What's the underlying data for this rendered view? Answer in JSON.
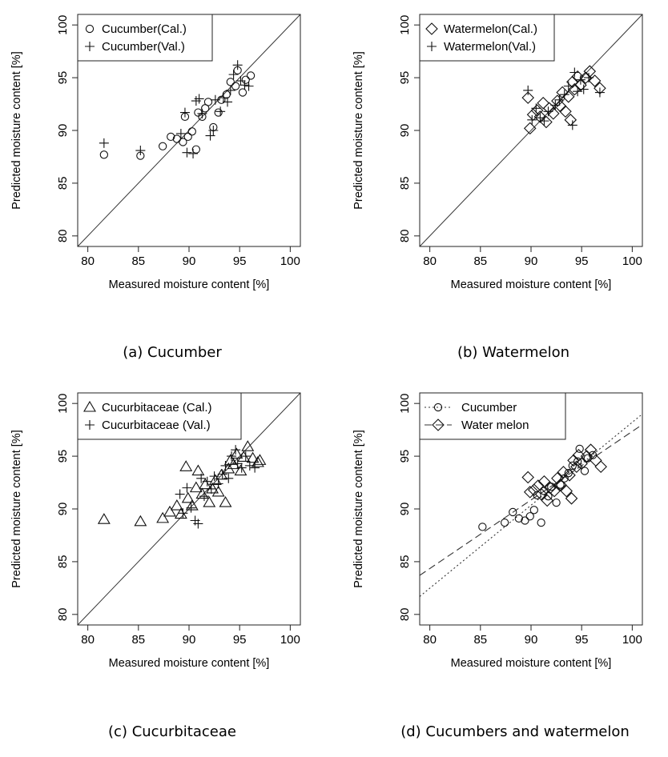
{
  "figure": {
    "panels": [
      {
        "caption": "(a) Cucumber"
      },
      {
        "caption": "(b) Watermelon"
      },
      {
        "caption": "(c) Cucurbitaceae"
      },
      {
        "caption": "(d) Cucumbers and watermelon"
      }
    ]
  },
  "chart_data": [
    {
      "type": "scatter",
      "title": "",
      "xlabel": "Measured moisture content [%]",
      "ylabel": "Predicted moisture content [%]",
      "xlim": [
        79,
        101
      ],
      "ylim": [
        79,
        101
      ],
      "xticks": [
        80,
        85,
        90,
        95,
        100
      ],
      "yticks": [
        80,
        85,
        90,
        95,
        100
      ],
      "identity_line": true,
      "legend_position": "top-left",
      "series": [
        {
          "name": "Cucumber(Cal.)",
          "marker": "circle",
          "points": [
            [
              81.6,
              87.7
            ],
            [
              85.2,
              87.6
            ],
            [
              87.4,
              88.5
            ],
            [
              88.2,
              89.4
            ],
            [
              88.8,
              89.2
            ],
            [
              89.4,
              88.9
            ],
            [
              89.9,
              89.4
            ],
            [
              89.6,
              91.3
            ],
            [
              90.3,
              89.9
            ],
            [
              90.7,
              88.2
            ],
            [
              90.9,
              91.7
            ],
            [
              91.3,
              91.3
            ],
            [
              91.6,
              92.1
            ],
            [
              91.9,
              92.7
            ],
            [
              92.4,
              90.3
            ],
            [
              92.9,
              91.7
            ],
            [
              93.2,
              92.9
            ],
            [
              93.7,
              93.4
            ],
            [
              94.1,
              94.6
            ],
            [
              94.6,
              94.2
            ],
            [
              94.8,
              95.7
            ],
            [
              95.3,
              93.6
            ],
            [
              95.6,
              94.8
            ],
            [
              96.1,
              95.2
            ]
          ]
        },
        {
          "name": "Cucumber(Val.)",
          "marker": "plus",
          "points": [
            [
              81.6,
              88.8
            ],
            [
              85.2,
              88.1
            ],
            [
              89.2,
              89.7
            ],
            [
              89.6,
              91.7
            ],
            [
              89.8,
              87.9
            ],
            [
              90.4,
              87.8
            ],
            [
              90.7,
              92.8
            ],
            [
              91.0,
              93.0
            ],
            [
              91.3,
              91.6
            ],
            [
              92.1,
              89.5
            ],
            [
              92.4,
              90.0
            ],
            [
              92.6,
              92.9
            ],
            [
              93.1,
              91.8
            ],
            [
              93.4,
              93.1
            ],
            [
              93.8,
              92.7
            ],
            [
              94.1,
              93.8
            ],
            [
              94.4,
              95.3
            ],
            [
              94.8,
              96.2
            ],
            [
              95.1,
              94.7
            ],
            [
              95.5,
              94.3
            ],
            [
              95.9,
              94.2
            ]
          ]
        }
      ]
    },
    {
      "type": "scatter",
      "title": "",
      "xlabel": "Measured moisture content [%]",
      "ylabel": "Predicted moisture content [%]",
      "xlim": [
        79,
        101
      ],
      "ylim": [
        79,
        101
      ],
      "xticks": [
        80,
        85,
        90,
        95,
        100
      ],
      "yticks": [
        80,
        85,
        90,
        95,
        100
      ],
      "identity_line": true,
      "legend_position": "top-left",
      "series": [
        {
          "name": "Watermelon(Cal.)",
          "marker": "diamond",
          "points": [
            [
              89.7,
              93.1
            ],
            [
              89.9,
              90.2
            ],
            [
              90.2,
              91.5
            ],
            [
              90.6,
              91.9
            ],
            [
              90.9,
              91.3
            ],
            [
              91.2,
              92.6
            ],
            [
              91.5,
              90.8
            ],
            [
              91.8,
              92.1
            ],
            [
              92.2,
              91.6
            ],
            [
              92.6,
              92.8
            ],
            [
              92.9,
              92.3
            ],
            [
              93.1,
              93.6
            ],
            [
              93.4,
              91.8
            ],
            [
              93.7,
              93.2
            ],
            [
              93.9,
              91.0
            ],
            [
              94.1,
              94.6
            ],
            [
              94.3,
              93.9
            ],
            [
              94.6,
              95.1
            ],
            [
              94.9,
              94.3
            ],
            [
              95.4,
              95.0
            ],
            [
              95.8,
              95.6
            ],
            [
              96.3,
              94.7
            ],
            [
              96.8,
              94.0
            ]
          ]
        },
        {
          "name": "Watermelon(Val.)",
          "marker": "plus",
          "points": [
            [
              89.7,
              93.8
            ],
            [
              90.1,
              91.0
            ],
            [
              90.5,
              92.1
            ],
            [
              90.9,
              91.2
            ],
            [
              91.3,
              90.9
            ],
            [
              91.7,
              91.8
            ],
            [
              92.4,
              92.4
            ],
            [
              92.8,
              92.9
            ],
            [
              93.3,
              93.4
            ],
            [
              93.7,
              94.2
            ],
            [
              94.1,
              90.5
            ],
            [
              94.3,
              95.5
            ],
            [
              94.6,
              93.7
            ],
            [
              94.9,
              94.8
            ],
            [
              95.2,
              93.9
            ],
            [
              95.7,
              95.0
            ],
            [
              96.8,
              93.6
            ]
          ]
        }
      ]
    },
    {
      "type": "scatter",
      "title": "",
      "xlabel": "Measured moisture content [%]",
      "ylabel": "Predicted moisture content [%]",
      "xlim": [
        79,
        101
      ],
      "ylim": [
        79,
        101
      ],
      "xticks": [
        80,
        85,
        90,
        95,
        100
      ],
      "yticks": [
        80,
        85,
        90,
        95,
        100
      ],
      "identity_line": true,
      "legend_position": "top-left",
      "series": [
        {
          "name": "Cucurbitaceae (Cal.)",
          "marker": "triangle",
          "points": [
            [
              81.6,
              89.0
            ],
            [
              85.2,
              88.8
            ],
            [
              87.4,
              89.1
            ],
            [
              88.1,
              89.7
            ],
            [
              88.8,
              90.3
            ],
            [
              89.2,
              89.5
            ],
            [
              89.7,
              94.0
            ],
            [
              89.9,
              91.0
            ],
            [
              90.3,
              90.3
            ],
            [
              90.7,
              92.0
            ],
            [
              90.9,
              93.6
            ],
            [
              91.3,
              91.4
            ],
            [
              91.6,
              92.3
            ],
            [
              92.0,
              90.6
            ],
            [
              92.3,
              91.9
            ],
            [
              92.6,
              92.7
            ],
            [
              92.9,
              91.6
            ],
            [
              93.2,
              93.2
            ],
            [
              93.6,
              90.6
            ],
            [
              93.9,
              93.8
            ],
            [
              94.1,
              94.6
            ],
            [
              94.4,
              94.2
            ],
            [
              94.7,
              95.2
            ],
            [
              95.1,
              93.6
            ],
            [
              95.4,
              94.9
            ],
            [
              95.8,
              95.9
            ],
            [
              96.3,
              94.8
            ],
            [
              96.8,
              94.4
            ],
            [
              97.0,
              94.6
            ]
          ]
        },
        {
          "name": "Cucurbitaceae (Val.)",
          "marker": "plus",
          "points": [
            [
              89.1,
              91.4
            ],
            [
              89.4,
              89.6
            ],
            [
              89.8,
              92.0
            ],
            [
              90.2,
              90.1
            ],
            [
              90.6,
              88.9
            ],
            [
              90.9,
              88.6
            ],
            [
              91.2,
              92.9
            ],
            [
              91.5,
              91.2
            ],
            [
              91.8,
              92.6
            ],
            [
              92.2,
              91.9
            ],
            [
              92.5,
              93.1
            ],
            [
              92.9,
              92.4
            ],
            [
              93.3,
              93.3
            ],
            [
              93.6,
              94.1
            ],
            [
              93.9,
              92.9
            ],
            [
              94.2,
              95.0
            ],
            [
              94.6,
              95.6
            ],
            [
              94.8,
              94.3
            ],
            [
              95.2,
              93.9
            ],
            [
              95.6,
              95.0
            ],
            [
              96.0,
              94.1
            ],
            [
              96.5,
              93.9
            ]
          ]
        }
      ]
    },
    {
      "type": "scatter",
      "title": "",
      "xlabel": "Measured moisture content [%]",
      "ylabel": "Predicted moisture content [%]",
      "xlim": [
        79,
        101
      ],
      "ylim": [
        79,
        101
      ],
      "xticks": [
        80,
        85,
        90,
        95,
        100
      ],
      "yticks": [
        80,
        85,
        90,
        95,
        100
      ],
      "identity_line": false,
      "legend_position": "top-left",
      "series": [
        {
          "name": "Cucumber",
          "marker": "circle",
          "line_style": "dotted",
          "fit_line": [
            [
              79,
              81.7
            ],
            [
              101,
              99.0
            ]
          ],
          "points": [
            [
              85.2,
              88.3
            ],
            [
              87.4,
              88.7
            ],
            [
              88.2,
              89.7
            ],
            [
              88.8,
              89.1
            ],
            [
              89.4,
              88.9
            ],
            [
              89.9,
              89.3
            ],
            [
              90.3,
              89.9
            ],
            [
              90.6,
              91.3
            ],
            [
              91.0,
              88.7
            ],
            [
              91.3,
              91.7
            ],
            [
              91.7,
              91.2
            ],
            [
              92.0,
              92.1
            ],
            [
              92.5,
              90.6
            ],
            [
              92.9,
              92.3
            ],
            [
              93.3,
              92.9
            ],
            [
              93.7,
              93.4
            ],
            [
              94.1,
              94.1
            ],
            [
              94.6,
              94.5
            ],
            [
              94.8,
              95.7
            ],
            [
              95.3,
              93.6
            ],
            [
              95.6,
              94.8
            ],
            [
              96.1,
              95.1
            ]
          ]
        },
        {
          "name": "Water melon",
          "marker": "diamond",
          "line_style": "dashed",
          "fit_line": [
            [
              79,
              83.7
            ],
            [
              101,
              98.0
            ]
          ],
          "points": [
            [
              89.7,
              93.0
            ],
            [
              89.9,
              91.6
            ],
            [
              90.3,
              91.8
            ],
            [
              90.7,
              92.2
            ],
            [
              91.0,
              91.4
            ],
            [
              91.3,
              92.6
            ],
            [
              91.6,
              90.8
            ],
            [
              91.9,
              92.0
            ],
            [
              92.3,
              91.7
            ],
            [
              92.6,
              92.9
            ],
            [
              92.9,
              92.3
            ],
            [
              93.2,
              93.5
            ],
            [
              93.5,
              91.7
            ],
            [
              93.8,
              93.2
            ],
            [
              94.0,
              91.0
            ],
            [
              94.2,
              94.6
            ],
            [
              94.5,
              94.0
            ],
            [
              94.7,
              95.1
            ],
            [
              95.0,
              94.3
            ],
            [
              95.5,
              95.0
            ],
            [
              95.9,
              95.6
            ],
            [
              96.4,
              94.6
            ],
            [
              96.9,
              94.0
            ]
          ]
        }
      ]
    }
  ]
}
